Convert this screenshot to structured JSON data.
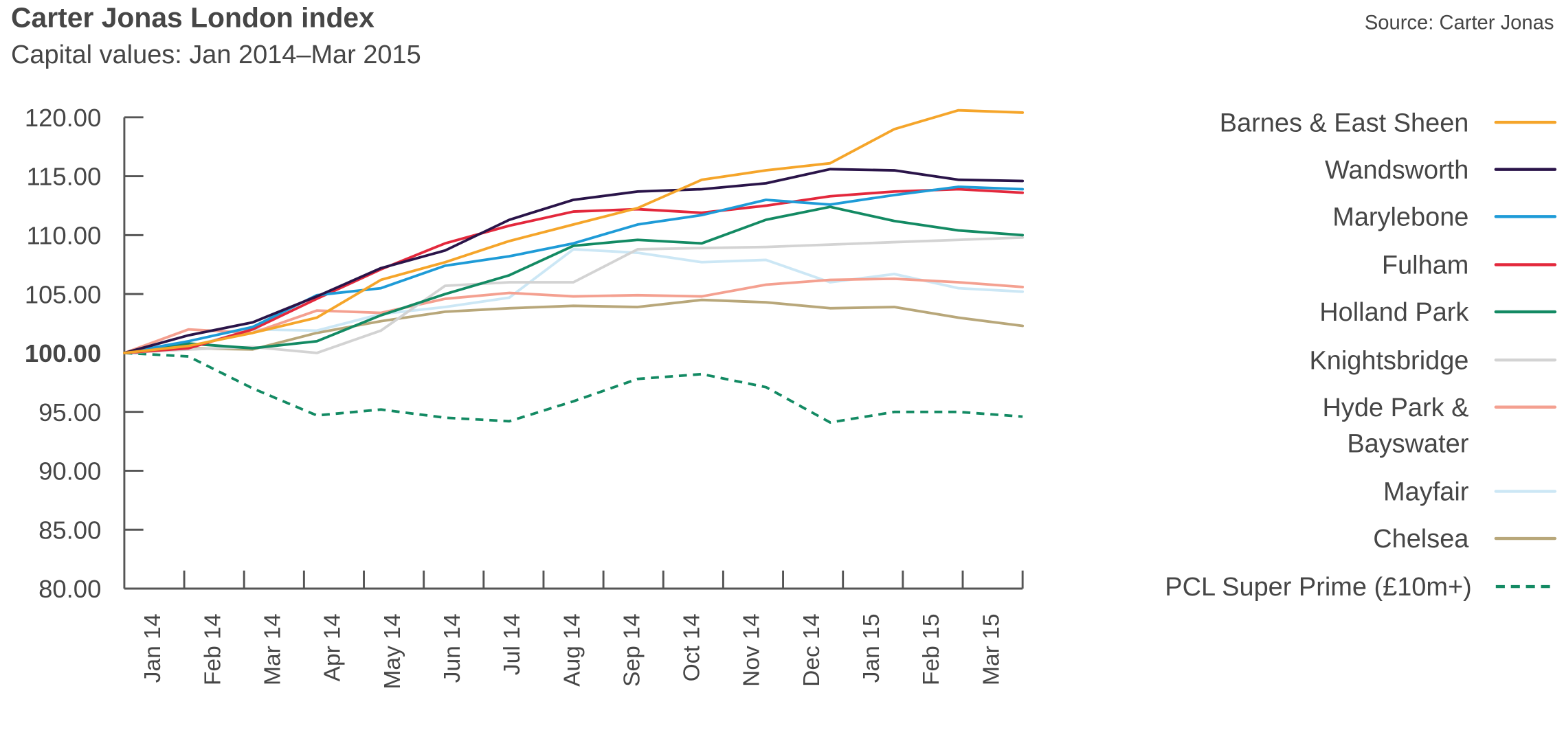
{
  "header": {
    "title": "Carter Jonas London index",
    "subtitle": "Capital values: Jan 2014–Mar 2015",
    "source": "Source: Carter Jonas"
  },
  "chart_data": {
    "type": "line",
    "title": "Carter Jonas London index",
    "subtitle": "Capital values: Jan 2014–Mar 2015",
    "source": "Source: Carter Jonas",
    "xlabel": "",
    "ylabel": "",
    "ylim": [
      80,
      120
    ],
    "yticks": [
      "120.00",
      "115.00",
      "110.00",
      "105.00",
      "100.00",
      "95.00",
      "90.00",
      "85.00",
      "80.00"
    ],
    "ytick_values": [
      120,
      115,
      110,
      105,
      100,
      95,
      90,
      85,
      80
    ],
    "bold_ytick": "100.00",
    "grid": false,
    "legend_position": "right",
    "categories": [
      "Jan 14",
      "Feb 14",
      "Mar 14",
      "Apr 14",
      "May 14",
      "Jun 14",
      "Jul 14",
      "Aug 14",
      "Sep 14",
      "Oct 14",
      "Nov 14",
      "Dec 14",
      "Jan 15",
      "Feb 15",
      "Mar 15"
    ],
    "series": [
      {
        "name": "Barnes & East Sheen",
        "color": "#f5a52a",
        "dashed": false,
        "values": [
          100,
          100.6,
          101.7,
          103.0,
          106.2,
          107.7,
          109.5,
          110.9,
          112.3,
          114.7,
          115.5,
          116.1,
          119.0,
          120.6,
          120.4
        ]
      },
      {
        "name": "Wandsworth",
        "color": "#2a1449",
        "dashed": false,
        "values": [
          100,
          101.5,
          102.6,
          104.8,
          107.2,
          108.7,
          111.3,
          113.0,
          113.7,
          113.9,
          114.4,
          115.6,
          115.5,
          114.7,
          114.6
        ]
      },
      {
        "name": "Marylebone",
        "color": "#1e9bd7",
        "dashed": false,
        "values": [
          100,
          101.0,
          102.2,
          104.9,
          105.5,
          107.4,
          108.2,
          109.3,
          110.9,
          111.7,
          113.0,
          112.6,
          113.4,
          114.1,
          113.9
        ]
      },
      {
        "name": "Fulham",
        "color": "#e3283c",
        "dashed": false,
        "values": [
          100,
          100.4,
          102.0,
          104.6,
          107.1,
          109.3,
          110.8,
          112.0,
          112.2,
          111.9,
          112.5,
          113.3,
          113.7,
          113.9,
          113.6
        ]
      },
      {
        "name": "Holland Park",
        "color": "#138a63",
        "dashed": false,
        "values": [
          100,
          100.8,
          100.4,
          101.0,
          103.2,
          105.0,
          106.6,
          109.1,
          109.6,
          109.3,
          111.3,
          112.4,
          111.2,
          110.4,
          110.0
        ]
      },
      {
        "name": "Knightsbridge",
        "color": "#d3d3d3",
        "dashed": false,
        "values": [
          100,
          100.3,
          100.5,
          100.0,
          101.9,
          105.7,
          106.0,
          106.0,
          108.8,
          108.9,
          109.0,
          109.2,
          109.4,
          109.6,
          109.8
        ]
      },
      {
        "name": "Hyde Park & Bayswater",
        "color": "#f4a090",
        "dashed": false,
        "values": [
          100,
          102.0,
          101.7,
          103.6,
          103.4,
          104.6,
          105.1,
          104.8,
          104.9,
          104.8,
          105.8,
          106.2,
          106.3,
          106.0,
          105.6
        ]
      },
      {
        "name": "Mayfair",
        "color": "#cce7f5",
        "dashed": false,
        "values": [
          100,
          100.5,
          102.0,
          101.9,
          103.3,
          103.9,
          104.7,
          108.8,
          108.5,
          107.7,
          107.9,
          106.0,
          106.7,
          105.5,
          105.2
        ]
      },
      {
        "name": "Chelsea",
        "color": "#b8a77a",
        "dashed": false,
        "values": [
          100,
          100.4,
          100.3,
          101.7,
          102.7,
          103.5,
          103.8,
          104.0,
          103.9,
          104.5,
          104.3,
          103.8,
          103.9,
          103.0,
          102.3
        ]
      },
      {
        "name": "PCL Super Prime (£10m+)",
        "color": "#138a63",
        "dashed": true,
        "values": [
          100,
          99.7,
          97.0,
          94.7,
          95.2,
          94.5,
          94.2,
          95.9,
          97.8,
          98.2,
          97.1,
          94.1,
          95.0,
          95.0,
          94.6
        ]
      }
    ]
  },
  "legend": {
    "items": [
      {
        "lines": [
          "Barnes & East Sheen"
        ]
      },
      {
        "lines": [
          "Wandsworth"
        ]
      },
      {
        "lines": [
          "Marylebone"
        ]
      },
      {
        "lines": [
          "Fulham"
        ]
      },
      {
        "lines": [
          "Holland Park"
        ]
      },
      {
        "lines": [
          "Knightsbridge"
        ]
      },
      {
        "lines": [
          "Hyde Park &",
          "Bayswater"
        ]
      },
      {
        "lines": [
          "Mayfair"
        ]
      },
      {
        "lines": [
          "Chelsea"
        ]
      },
      {
        "lines": [
          "PCL Super Prime (£10m+)"
        ]
      }
    ]
  }
}
